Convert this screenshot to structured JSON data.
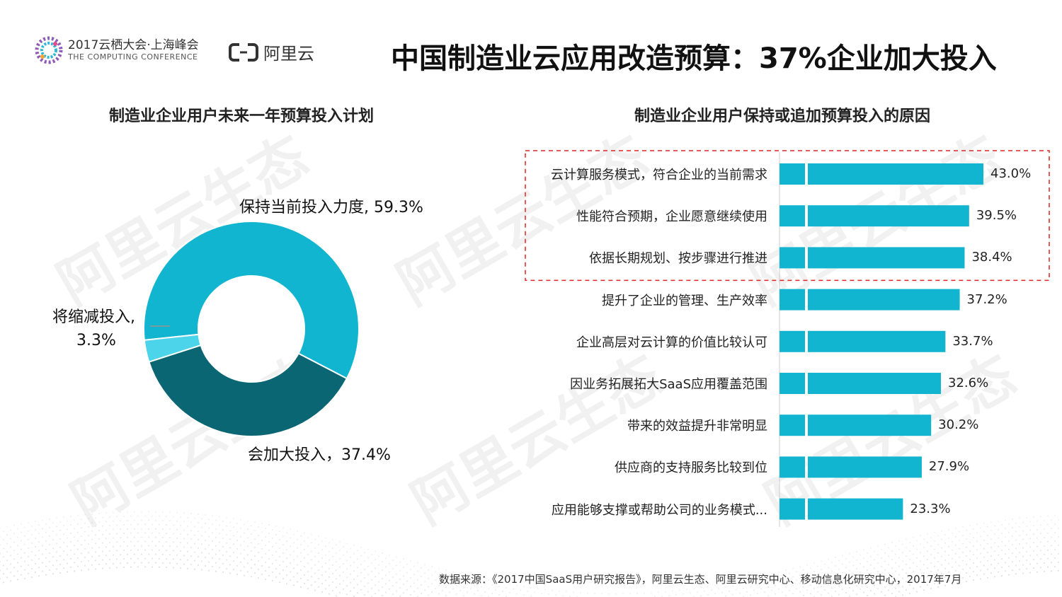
{
  "header": {
    "conference_line1": "2017云栖大会·上海峰会",
    "conference_line2": "THE COMPUTING CONFERENCE",
    "brand": "阿里云",
    "title": "中国制造业云应用改造预算：37%企业加大投入"
  },
  "watermark_text": "阿里云生态",
  "colors": {
    "maintain": "#12b5cf",
    "increase": "#0b6673",
    "decrease": "#4bd4ea",
    "bar": "#12b5cf",
    "highlight_box": "#e02424"
  },
  "chart_data": [
    {
      "type": "pie",
      "title": "制造业企业用户未来一年预算投入计划",
      "donut": true,
      "slices": [
        {
          "label": "保持当前投入力度",
          "value": 59.3,
          "display": "保持当前投入力度, 59.3%"
        },
        {
          "label": "会加大投入",
          "value": 37.4,
          "display": "会加大投入，37.4%"
        },
        {
          "label": "将缩减投入",
          "value": 3.3,
          "display": [
            "将缩减投入,",
            "3.3%"
          ]
        }
      ]
    },
    {
      "type": "bar",
      "orientation": "horizontal",
      "title": "制造业企业用户保持或追加预算投入的原因",
      "categories": [
        "云计算服务模式，符合企业的当前需求",
        "性能符合预期，企业愿意继续使用",
        "依据长期规划、按步骤进行推进",
        "提升了企业的管理、生产效率",
        "企业高层对云计算的价值比较认可",
        "因业务拓展拓大SaaS应用覆盖范围",
        "带来的效益提升非常明显",
        "供应商的支持服务比较到位",
        "应用能够支撑或帮助公司的业务模式..."
      ],
      "values": [
        43.0,
        39.5,
        38.4,
        37.2,
        33.7,
        32.6,
        30.2,
        27.9,
        23.3
      ],
      "value_labels": [
        "43.0%",
        "39.5%",
        "38.4%",
        "37.2%",
        "33.7%",
        "32.6%",
        "30.2%",
        "27.9%",
        "23.3%"
      ],
      "highlighted_count": 3,
      "xlim": [
        0,
        45
      ]
    }
  ],
  "source": "数据来源：《2017中国SaaS用户研究报告》，阿里云生态、阿里云研究中心、移动信息化研究中心，2017年7月"
}
